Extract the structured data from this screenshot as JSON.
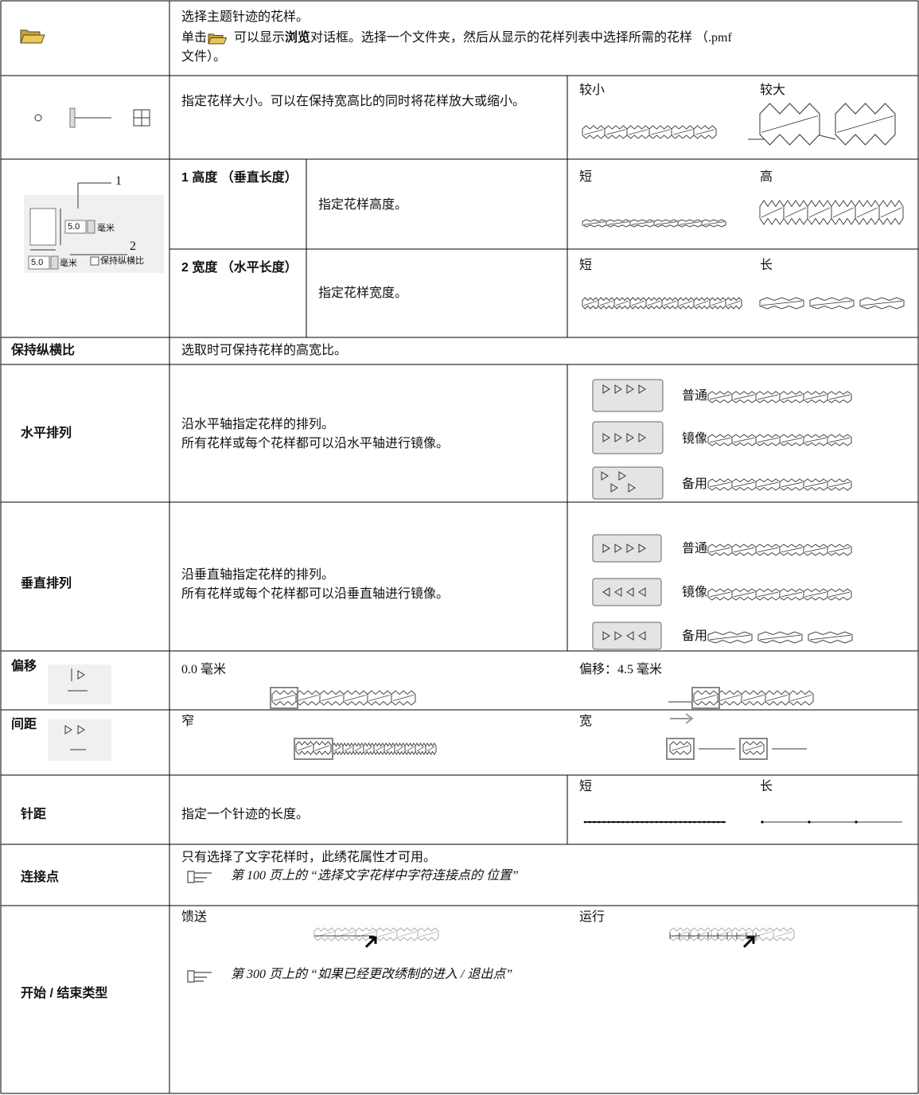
{
  "open": {
    "line1": "选择主题针迹的花样。",
    "line2_a": "单击",
    "line2_b": "可以显示",
    "line2_bold": "浏览",
    "line2_c": "对话框。选择一个文件夹，然后从显示的花样列表中选择所需的花样 （.pmf",
    "line3": "文件）。"
  },
  "size": {
    "description": "指定花样大小。可以在保持宽高比的同时将花样放大或缩小。",
    "smaller": "较小",
    "larger": "较大"
  },
  "dimensions": {
    "icon": {
      "label_1": "1",
      "label_2": "2",
      "height_value": "5.0",
      "height_unit": "毫米",
      "width_value": "5.0",
      "width_unit": "毫米",
      "checkbox": "保持纵横比"
    },
    "height": {
      "label": "1 高度 （垂直长度）",
      "description": "指定花样高度。",
      "low": "短",
      "high": "高"
    },
    "width": {
      "label": "2 宽度 （水平长度）",
      "description": "指定花样宽度。",
      "low": "短",
      "high": "长"
    }
  },
  "aspect": {
    "label": "保持纵横比",
    "description": "选取时可保持花样的高宽比。"
  },
  "horizontal": {
    "label": "水平排列",
    "lines": [
      "沿水平轴指定花样的排列。",
      "所有花样或每个花样都可以沿水平轴进行镜像。"
    ],
    "options": [
      "普通",
      "镜像",
      "备用"
    ]
  },
  "vertical": {
    "label": "垂直排列",
    "lines": [
      "沿垂直轴指定花样的排列。",
      "所有花样或每个花样都可以沿垂直轴进行镜像。"
    ],
    "options": [
      "普通",
      "镜像",
      "备用"
    ]
  },
  "offset": {
    "label": "偏移",
    "left": "0.0 毫米",
    "right": "偏移：4.5 毫米"
  },
  "spacing": {
    "label": "间距",
    "left": "窄",
    "right": "宽"
  },
  "stitch": {
    "label": "针距",
    "description": "指定一个针迹的长度。",
    "short": "短",
    "long": "长"
  },
  "connect": {
    "label": "连接点",
    "description": "只有选择了文字花样时，此绣花属性才可用。",
    "reference": "第 100 页上的 “选择文字花样中字符连接点的 位置”"
  },
  "start_end": {
    "label": "开始 / 结束类型",
    "feed": "馈送",
    "run": "运行",
    "reference": "第 300 页上的 “如果已经更改绣制的进入 / 退出点”"
  }
}
